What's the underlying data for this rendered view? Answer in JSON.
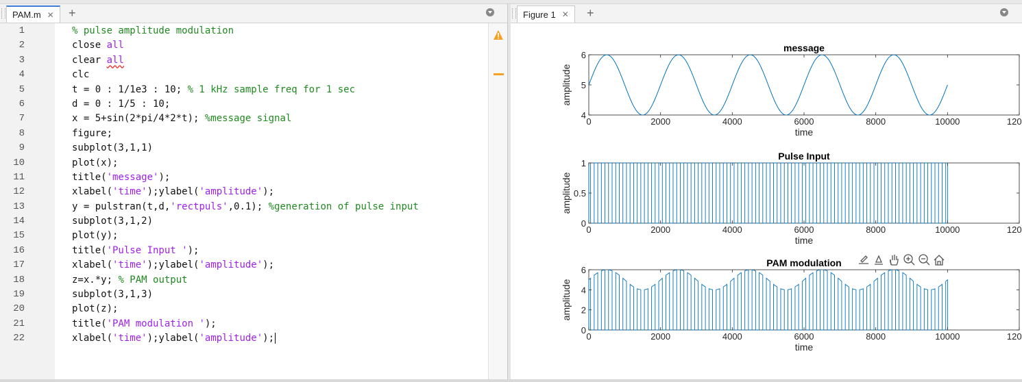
{
  "editor": {
    "tab_label": "PAM.m",
    "lines": [
      [
        {
          "t": "% pulse amplitude modulation",
          "c": "com"
        }
      ],
      [
        {
          "t": "close ",
          "c": ""
        },
        {
          "t": "all",
          "c": "str"
        }
      ],
      [
        {
          "t": "clear ",
          "c": ""
        },
        {
          "t": "all",
          "c": "str squig"
        }
      ],
      [
        {
          "t": "clc",
          "c": ""
        }
      ],
      [
        {
          "t": "t = 0 : 1/1e3 : 10; ",
          "c": ""
        },
        {
          "t": "% 1 kHz sample freq for 1 sec",
          "c": "com"
        }
      ],
      [
        {
          "t": "d = 0 : 1/5 : 10;",
          "c": ""
        }
      ],
      [
        {
          "t": "x = 5+sin(2*pi/4*2*t); ",
          "c": ""
        },
        {
          "t": "%message signal",
          "c": "com"
        }
      ],
      [
        {
          "t": "figure;",
          "c": ""
        }
      ],
      [
        {
          "t": "subplot(3,1,1)",
          "c": ""
        }
      ],
      [
        {
          "t": "plot(x);",
          "c": ""
        }
      ],
      [
        {
          "t": "title(",
          "c": ""
        },
        {
          "t": "'message'",
          "c": "str"
        },
        {
          "t": ");",
          "c": ""
        }
      ],
      [
        {
          "t": "xlabel(",
          "c": ""
        },
        {
          "t": "'time'",
          "c": "str"
        },
        {
          "t": ");ylabel(",
          "c": ""
        },
        {
          "t": "'amplitude'",
          "c": "str"
        },
        {
          "t": ");",
          "c": ""
        }
      ],
      [
        {
          "t": "y = pulstran(t,d,",
          "c": ""
        },
        {
          "t": "'rectpuls'",
          "c": "str"
        },
        {
          "t": ",0.1); ",
          "c": ""
        },
        {
          "t": "%generation of pulse input",
          "c": "com"
        }
      ],
      [
        {
          "t": "subplot(3,1,2)",
          "c": ""
        }
      ],
      [
        {
          "t": "plot(y);",
          "c": ""
        }
      ],
      [
        {
          "t": "title(",
          "c": ""
        },
        {
          "t": "'Pulse Input '",
          "c": "str"
        },
        {
          "t": ");",
          "c": ""
        }
      ],
      [
        {
          "t": "xlabel(",
          "c": ""
        },
        {
          "t": "'time'",
          "c": "str"
        },
        {
          "t": ");ylabel(",
          "c": ""
        },
        {
          "t": "'amplitude'",
          "c": "str"
        },
        {
          "t": ");",
          "c": ""
        }
      ],
      [
        {
          "t": "z=x.*y; ",
          "c": ""
        },
        {
          "t": "% PAM output",
          "c": "com"
        }
      ],
      [
        {
          "t": "subplot(3,1,3)",
          "c": ""
        }
      ],
      [
        {
          "t": "plot(z);",
          "c": ""
        }
      ],
      [
        {
          "t": "title(",
          "c": ""
        },
        {
          "t": "'PAM modulation '",
          "c": "str"
        },
        {
          "t": ");",
          "c": ""
        }
      ],
      [
        {
          "t": "xlabel(",
          "c": ""
        },
        {
          "t": "'time'",
          "c": "str"
        },
        {
          "t": ");ylabel(",
          "c": ""
        },
        {
          "t": "'amplitude'",
          "c": "str"
        },
        {
          "t": ");",
          "c": ""
        }
      ]
    ]
  },
  "figure": {
    "tab_label": "Figure 1",
    "toolbar_icons": [
      "export-icon",
      "brush-icon",
      "pan-hand-icon",
      "zoom-in-icon",
      "zoom-out-icon",
      "home-icon"
    ]
  },
  "colors": {
    "line": "#0072bd",
    "comment": "#1f8a1f",
    "string": "#a020f0",
    "tab_accent": "#3b7dd8"
  },
  "chart_data": [
    {
      "type": "line",
      "title": "message",
      "xlabel": "time",
      "ylabel": "amplitude",
      "xlim": [
        0,
        12000
      ],
      "ylim": [
        4,
        6
      ],
      "xticks": [
        0,
        2000,
        4000,
        6000,
        8000,
        10000,
        12000
      ],
      "yticks": [
        4,
        5,
        6
      ],
      "series": [
        {
          "formula": "5+sin(2*pi/4*2*t)",
          "x_range": [
            1,
            10001
          ],
          "peak_x": [
            500,
            2500,
            4500,
            6500,
            8500
          ],
          "trough_x": [
            1500,
            3500,
            5500,
            7500,
            9500
          ]
        }
      ]
    },
    {
      "type": "line",
      "title": "Pulse Input",
      "xlabel": "time",
      "ylabel": "amplitude",
      "xlim": [
        0,
        12000
      ],
      "ylim": [
        0,
        1
      ],
      "xticks": [
        0,
        2000,
        4000,
        6000,
        8000,
        10000,
        12000
      ],
      "yticks": [
        0,
        0.5,
        1
      ],
      "series": [
        {
          "pulse_train_period": 200,
          "pulse_width": 100,
          "pulse_height": 1,
          "x_range": [
            1,
            10001
          ]
        }
      ]
    },
    {
      "type": "line",
      "title": "PAM modulation",
      "xlabel": "time",
      "ylabel": "amplitude",
      "xlim": [
        0,
        12000
      ],
      "ylim": [
        0,
        6
      ],
      "xticks": [
        0,
        2000,
        4000,
        6000,
        8000,
        10000,
        12000
      ],
      "yticks": [
        0,
        2,
        4,
        6
      ],
      "series": [
        {
          "pulse_train_period": 200,
          "pulse_width": 100,
          "envelope": "5+sin(2*pi/4*2*t)",
          "x_range": [
            1,
            10001
          ]
        }
      ]
    }
  ]
}
